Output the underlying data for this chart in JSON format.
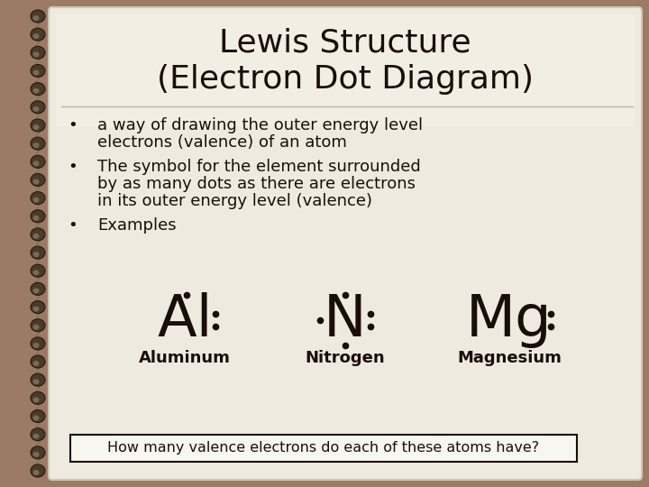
{
  "bg_outer": "#9B7B65",
  "bg_paper": "#EEEAE0",
  "text_color": "#1a0e08",
  "title_line1": "Lewis Structure",
  "title_line2": "(Electron Dot Diagram)",
  "bullet1_line1": "a way of drawing the outer energy level",
  "bullet1_line2": "electrons (valence) of an atom",
  "bullet2_line1": "The symbol for the element surrounded",
  "bullet2_line2": "by as many dots as there are electrons",
  "bullet2_line3": "in its outer energy level (valence)",
  "bullet3": "Examples",
  "element_Al": "Al",
  "element_N": "N",
  "element_Mg": "Mg",
  "label_Al": "Aluminum",
  "label_N": "Nitrogen",
  "label_Mg": "Magnesium",
  "bottom_text": "How many valence electrons do each of these atoms have?",
  "divider_color": "#b8b4a4",
  "font_title": 26,
  "font_body": 13,
  "font_element": 44,
  "font_label": 12
}
